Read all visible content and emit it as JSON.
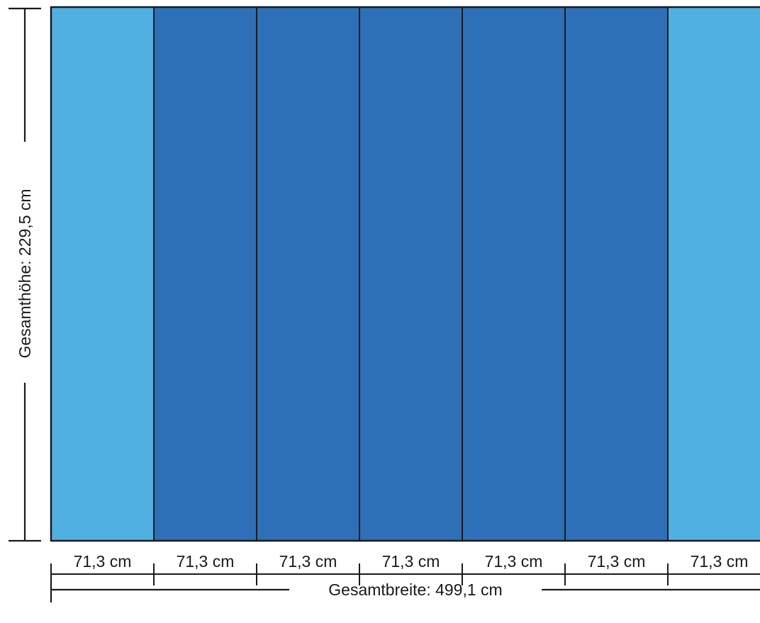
{
  "panels": [
    {
      "color": "#50b0e2"
    },
    {
      "color": "#2e70b7"
    },
    {
      "color": "#2e70b7"
    },
    {
      "color": "#2e70b7"
    },
    {
      "color": "#2e70b7"
    },
    {
      "color": "#2e70b7"
    },
    {
      "color": "#50b0e2"
    }
  ],
  "panel_width_labels": [
    "71,3 cm",
    "71,3 cm",
    "71,3 cm",
    "71,3 cm",
    "71,3 cm",
    "71,3 cm",
    "71,3 cm"
  ],
  "total_height_label": "Gesamthöhe: 229,5 cm",
  "total_width_label": "Gesamtbreite: 499,1 cm",
  "colors": {
    "stroke": "#1a1a1a"
  }
}
